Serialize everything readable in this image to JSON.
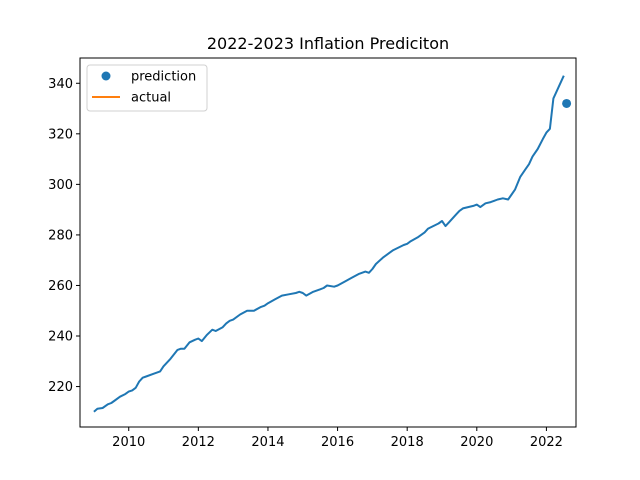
{
  "chart_data": {
    "type": "line",
    "title": "2022-2023 Inflation Prediciton",
    "xlabel": "",
    "ylabel": "",
    "xlim": [
      2008.6,
      2022.85
    ],
    "ylim": [
      204,
      350
    ],
    "xticks": [
      2010,
      2012,
      2014,
      2016,
      2018,
      2020,
      2022
    ],
    "yticks": [
      220,
      240,
      260,
      280,
      300,
      320,
      340
    ],
    "grid": false,
    "legend_position": "top-left",
    "series": [
      {
        "name": "actual",
        "type": "line",
        "color": "#ff7f0e",
        "x": [],
        "y": []
      },
      {
        "name": "",
        "type": "line",
        "color": "#1f77b4",
        "x": [
          2009.0,
          2009.1,
          2009.25,
          2009.4,
          2009.5,
          2009.6,
          2009.75,
          2009.9,
          2010.0,
          2010.1,
          2010.2,
          2010.3,
          2010.4,
          2010.5,
          2010.7,
          2010.9,
          2011.0,
          2011.2,
          2011.4,
          2011.5,
          2011.6,
          2011.75,
          2011.9,
          2012.0,
          2012.1,
          2012.25,
          2012.4,
          2012.5,
          2012.7,
          2012.8,
          2012.9,
          2013.0,
          2013.2,
          2013.4,
          2013.5,
          2013.6,
          2013.8,
          2013.9,
          2014.0,
          2014.2,
          2014.4,
          2014.6,
          2014.8,
          2014.9,
          2015.0,
          2015.1,
          2015.3,
          2015.5,
          2015.6,
          2015.7,
          2015.9,
          2016.0,
          2016.2,
          2016.4,
          2016.6,
          2016.8,
          2016.9,
          2017.0,
          2017.1,
          2017.3,
          2017.5,
          2017.6,
          2017.9,
          2018.0,
          2018.1,
          2018.3,
          2018.5,
          2018.6,
          2018.9,
          2019.0,
          2019.1,
          2019.2,
          2019.4,
          2019.5,
          2019.6,
          2019.75,
          2019.9,
          2020.0,
          2020.1,
          2020.25,
          2020.4,
          2020.5,
          2020.6,
          2020.75,
          2020.9,
          2021.0,
          2021.1,
          2021.25,
          2021.4,
          2021.5,
          2021.6,
          2021.75,
          2021.9,
          2022.0,
          2022.1,
          2022.2,
          2022.35,
          2022.5
        ],
        "y": [
          210.0,
          211.2,
          211.5,
          213.0,
          213.5,
          214.5,
          216.0,
          217.0,
          218.0,
          218.5,
          219.5,
          222.0,
          223.5,
          224.0,
          225.0,
          226.0,
          228.0,
          231.0,
          234.5,
          235.0,
          235.0,
          237.5,
          238.5,
          239.0,
          238.0,
          240.5,
          242.5,
          242.0,
          243.5,
          245.0,
          246.0,
          246.5,
          248.5,
          250.0,
          250.0,
          250.0,
          251.5,
          252.0,
          253.0,
          254.5,
          256.0,
          256.5,
          257.0,
          257.5,
          257.0,
          256.0,
          257.5,
          258.5,
          259.0,
          260.0,
          259.5,
          260.0,
          261.5,
          263.0,
          264.5,
          265.5,
          265.0,
          266.5,
          268.5,
          271.0,
          273.0,
          274.0,
          276.0,
          276.5,
          277.5,
          279.0,
          281.0,
          282.5,
          284.5,
          285.5,
          283.5,
          285.0,
          288.0,
          289.5,
          290.5,
          291.0,
          291.5,
          292.0,
          291.0,
          292.5,
          293.0,
          293.5,
          294.0,
          294.5,
          294.0,
          296.0,
          298.0,
          303.0,
          306.0,
          308.0,
          311.0,
          314.0,
          318.0,
          320.5,
          322.0,
          334.0,
          338.5,
          343.0
        ]
      },
      {
        "name": "prediction",
        "type": "scatter",
        "color": "#1f77b4",
        "x": [
          2022.58
        ],
        "y": [
          332
        ]
      }
    ]
  }
}
